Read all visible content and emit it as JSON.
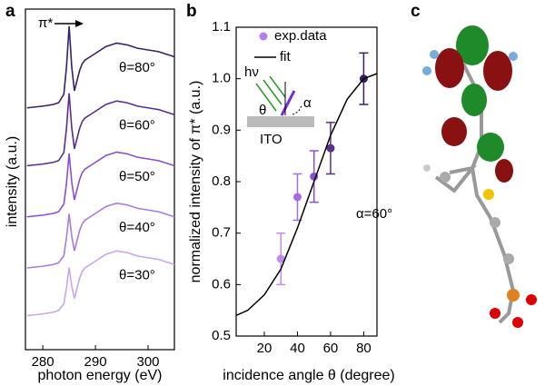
{
  "chart_data": [
    {
      "type": "line",
      "panel_label": "a",
      "x_label": "photon energy (eV)",
      "y_label": "intensity (a.u.)",
      "annotation": "π*",
      "xlim": [
        276.7,
        305
      ],
      "xticks": [
        280,
        290,
        300
      ],
      "ylim": [
        0,
        10
      ],
      "x": [
        277,
        280,
        282,
        283,
        284,
        284.5,
        285,
        285.5,
        286,
        286.5,
        287,
        287.5,
        288,
        289,
        290,
        292,
        294,
        296,
        298,
        300,
        302,
        305
      ],
      "series": [
        {
          "name": "θ=80°",
          "color": "#3b1f66",
          "values": [
            7.1,
            7.15,
            7.2,
            7.25,
            7.5,
            8.3,
            9.5,
            8.3,
            7.6,
            7.9,
            8.2,
            8.4,
            8.5,
            8.6,
            8.7,
            8.9,
            9.0,
            8.95,
            8.85,
            8.8,
            8.75,
            8.6
          ]
        },
        {
          "name": "θ=60°",
          "color": "#5a2d8f",
          "values": [
            5.4,
            5.45,
            5.5,
            5.55,
            5.79,
            6.5,
            7.53,
            6.51,
            5.9,
            6.2,
            6.5,
            6.7,
            6.8,
            6.9,
            7.0,
            7.2,
            7.3,
            7.25,
            7.15,
            7.1,
            7.05,
            6.9
          ]
        },
        {
          "name": "θ=50°",
          "color": "#8a4fd0",
          "values": [
            3.9,
            3.95,
            4.0,
            4.05,
            4.27,
            4.89,
            5.76,
            4.92,
            4.4,
            4.7,
            5.0,
            5.2,
            5.3,
            5.4,
            5.5,
            5.7,
            5.8,
            5.75,
            5.65,
            5.6,
            5.55,
            5.4
          ]
        },
        {
          "name": "θ=40°",
          "color": "#a87be0",
          "values": [
            2.4,
            2.45,
            2.5,
            2.55,
            2.76,
            3.29,
            3.99,
            3.33,
            2.9,
            3.2,
            3.5,
            3.7,
            3.8,
            3.9,
            4.0,
            4.2,
            4.3,
            4.25,
            4.15,
            4.1,
            4.05,
            3.9
          ]
        },
        {
          "name": "θ=30°",
          "color": "#c8a5ee",
          "values": [
            1.0,
            1.05,
            1.1,
            1.15,
            1.35,
            1.82,
            2.41,
            1.87,
            1.5,
            1.8,
            2.1,
            2.3,
            2.4,
            2.5,
            2.6,
            2.8,
            2.9,
            2.85,
            2.75,
            2.7,
            2.65,
            2.5
          ]
        }
      ]
    },
    {
      "type": "scatter",
      "panel_label": "b",
      "x_label": "incidence angle θ (degree)",
      "y_label": "normalized intensity of π* (a.u.)",
      "annotation": "α=60°",
      "inset_labels": [
        "hν",
        "θ",
        "α",
        "ITO"
      ],
      "xlim": [
        3,
        88
      ],
      "xticks": [
        20,
        40,
        60,
        80
      ],
      "ylim": [
        0.5,
        1.1
      ],
      "yticks": [
        0.5,
        0.6,
        0.7,
        0.8,
        0.9,
        {
          "value": 1.0,
          "label": "1.0"
        },
        1.1
      ],
      "series": [
        {
          "name": "exp.data",
          "mode": "markers",
          "color": "#b57cf0",
          "x": [
            30,
            40,
            50,
            60,
            80
          ],
          "values": [
            0.65,
            0.77,
            0.81,
            0.865,
            1.0
          ],
          "errors": [
            0.05,
            0.045,
            0.05,
            0.05,
            0.05
          ],
          "colors": [
            "#c08af2",
            "#a66ee6",
            "#8a4fd0",
            "#5a2d8f",
            "#3b1f66"
          ]
        },
        {
          "name": "fit",
          "mode": "line",
          "color": "#000000",
          "x": [
            3,
            10,
            20,
            30,
            40,
            50,
            60,
            70,
            80,
            88
          ],
          "values": [
            0.54,
            0.55,
            0.58,
            0.63,
            0.71,
            0.8,
            0.89,
            0.96,
            1.0,
            1.01
          ]
        }
      ]
    }
  ],
  "molecule": {
    "panel_label": "c"
  }
}
